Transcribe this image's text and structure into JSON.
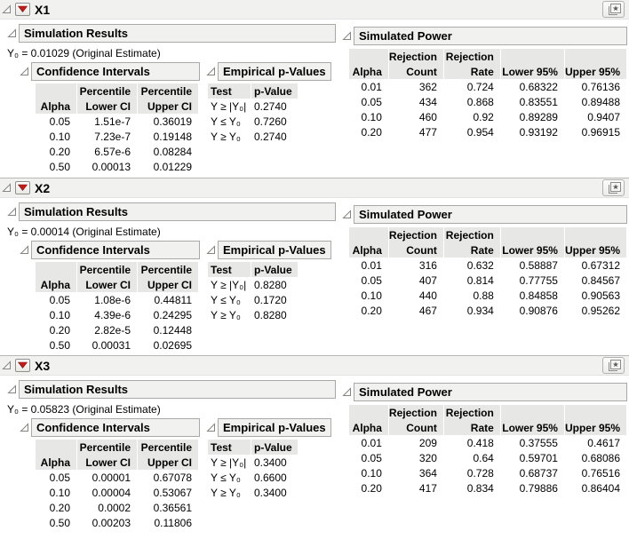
{
  "ui_colors": {
    "red_triangle": "#c11b17",
    "band_background": "#f1f1ef",
    "table_header_background": "#e7e7e6",
    "title_bar_background": "#f1f1ef"
  },
  "sections": [
    {
      "title": "X1",
      "simulation_results": {
        "header": "Simulation Results",
        "estimate_line": "Y₀ = 0.01029 (Original Estimate)",
        "confidence_intervals": {
          "header": "Confidence Intervals",
          "head1": [
            "",
            "Percentile",
            "Percentile"
          ],
          "head2": [
            "Alpha",
            "Lower CI",
            "Upper CI"
          ],
          "rows": [
            [
              "0.05",
              "1.51e-7",
              "0.36019"
            ],
            [
              "0.10",
              "7.23e-7",
              "0.19148"
            ],
            [
              "0.20",
              "6.57e-6",
              "0.08284"
            ],
            [
              "0.50",
              "0.00013",
              "0.01229"
            ]
          ]
        },
        "empirical_p_values": {
          "header": "Empirical p-Values",
          "head": [
            "Test",
            "p-Value"
          ],
          "rows": [
            [
              "Y ≥ |Y₀|",
              "0.2740"
            ],
            [
              "Y ≤ Y₀",
              "0.7260"
            ],
            [
              "Y ≥ Y₀",
              "0.2740"
            ]
          ]
        }
      },
      "simulated_power": {
        "header": "Simulated Power",
        "head1": [
          "",
          "Rejection",
          "Rejection",
          "",
          ""
        ],
        "head2": [
          "Alpha",
          "Count",
          "Rate",
          "Lower 95%",
          "Upper 95%"
        ],
        "rows": [
          [
            "0.01",
            "362",
            "0.724",
            "0.68322",
            "0.76136"
          ],
          [
            "0.05",
            "434",
            "0.868",
            "0.83551",
            "0.89488"
          ],
          [
            "0.10",
            "460",
            "0.92",
            "0.89289",
            "0.9407"
          ],
          [
            "0.20",
            "477",
            "0.954",
            "0.93192",
            "0.96915"
          ]
        ]
      }
    },
    {
      "title": "X2",
      "simulation_results": {
        "header": "Simulation Results",
        "estimate_line": "Y₀ = 0.00014 (Original Estimate)",
        "confidence_intervals": {
          "header": "Confidence Intervals",
          "head1": [
            "",
            "Percentile",
            "Percentile"
          ],
          "head2": [
            "Alpha",
            "Lower CI",
            "Upper CI"
          ],
          "rows": [
            [
              "0.05",
              "1.08e-6",
              "0.44811"
            ],
            [
              "0.10",
              "4.39e-6",
              "0.24295"
            ],
            [
              "0.20",
              "2.82e-5",
              "0.12448"
            ],
            [
              "0.50",
              "0.00031",
              "0.02695"
            ]
          ]
        },
        "empirical_p_values": {
          "header": "Empirical p-Values",
          "head": [
            "Test",
            "p-Value"
          ],
          "rows": [
            [
              "Y ≥ |Y₀|",
              "0.8280"
            ],
            [
              "Y ≤ Y₀",
              "0.1720"
            ],
            [
              "Y ≥ Y₀",
              "0.8280"
            ]
          ]
        }
      },
      "simulated_power": {
        "header": "Simulated Power",
        "head1": [
          "",
          "Rejection",
          "Rejection",
          "",
          ""
        ],
        "head2": [
          "Alpha",
          "Count",
          "Rate",
          "Lower 95%",
          "Upper 95%"
        ],
        "rows": [
          [
            "0.01",
            "316",
            "0.632",
            "0.58887",
            "0.67312"
          ],
          [
            "0.05",
            "407",
            "0.814",
            "0.77755",
            "0.84567"
          ],
          [
            "0.10",
            "440",
            "0.88",
            "0.84858",
            "0.90563"
          ],
          [
            "0.20",
            "467",
            "0.934",
            "0.90876",
            "0.95262"
          ]
        ]
      }
    },
    {
      "title": "X3",
      "simulation_results": {
        "header": "Simulation Results",
        "estimate_line": "Y₀ = 0.05823 (Original Estimate)",
        "confidence_intervals": {
          "header": "Confidence Intervals",
          "head1": [
            "",
            "Percentile",
            "Percentile"
          ],
          "head2": [
            "Alpha",
            "Lower CI",
            "Upper CI"
          ],
          "rows": [
            [
              "0.05",
              "0.00001",
              "0.67078"
            ],
            [
              "0.10",
              "0.00004",
              "0.53067"
            ],
            [
              "0.20",
              "0.0002",
              "0.36561"
            ],
            [
              "0.50",
              "0.00203",
              "0.11806"
            ]
          ]
        },
        "empirical_p_values": {
          "header": "Empirical p-Values",
          "head": [
            "Test",
            "p-Value"
          ],
          "rows": [
            [
              "Y ≥ |Y₀|",
              "0.3400"
            ],
            [
              "Y ≤ Y₀",
              "0.6600"
            ],
            [
              "Y ≥ Y₀",
              "0.3400"
            ]
          ]
        }
      },
      "simulated_power": {
        "header": "Simulated Power",
        "head1": [
          "",
          "Rejection",
          "Rejection",
          "",
          ""
        ],
        "head2": [
          "Alpha",
          "Count",
          "Rate",
          "Lower 95%",
          "Upper 95%"
        ],
        "rows": [
          [
            "0.01",
            "209",
            "0.418",
            "0.37555",
            "0.4617"
          ],
          [
            "0.05",
            "320",
            "0.64",
            "0.59701",
            "0.68086"
          ],
          [
            "0.10",
            "364",
            "0.728",
            "0.68737",
            "0.76516"
          ],
          [
            "0.20",
            "417",
            "0.834",
            "0.79886",
            "0.86404"
          ]
        ]
      }
    }
  ]
}
